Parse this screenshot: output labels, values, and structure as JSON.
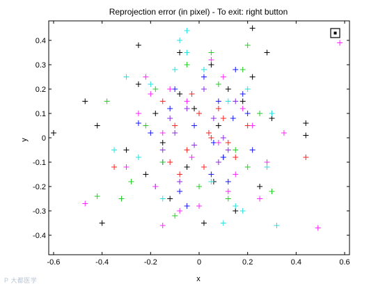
{
  "watermark": "P 大都医学",
  "marker_box_symbol": "⊡",
  "chart_data": {
    "type": "scatter",
    "title": "Reprojection error (in pixel) - To exit: right button",
    "xlabel": "x",
    "ylabel": "y",
    "xlim": [
      -0.62,
      0.62
    ],
    "ylim": [
      -0.48,
      0.48
    ],
    "xticks": [
      "-0.6",
      "-0.4",
      "-0.2",
      "0",
      "0.2",
      "0.4",
      "0.6"
    ],
    "xtick_values": [
      -0.6,
      -0.4,
      -0.2,
      0,
      0.2,
      0.4,
      0.6
    ],
    "yticks": [
      "0.4",
      "0.3",
      "0.2",
      "0.1",
      "0",
      "-0.1",
      "-0.2",
      "-0.3",
      "-0.4"
    ],
    "ytick_values": [
      0.4,
      0.3,
      0.2,
      0.1,
      0,
      -0.1,
      -0.2,
      -0.3,
      -0.4
    ],
    "marker": "+",
    "grid": false,
    "series_colors": [
      "#000000",
      "#1515ff",
      "#ff2020",
      "#22cc22",
      "#ff22ff",
      "#22e0e0",
      "#8a2be2"
    ],
    "series": [
      {
        "color": "#000000",
        "x": [
          0.12,
          -0.05,
          0.08,
          -0.18,
          0.25,
          -0.3,
          0.05,
          -0.12,
          0.18,
          -0.22,
          0.02,
          0.3,
          -0.08,
          0.15,
          -0.25,
          0.1,
          -0.15,
          0.22,
          -0.02,
          0.06,
          -0.6,
          -0.47,
          -0.42,
          -0.4,
          -0.25,
          -0.08,
          0.28,
          0.22,
          0.44,
          0.44
        ],
        "y": [
          0.2,
          -0.12,
          0.05,
          0.1,
          -0.2,
          -0.05,
          0.3,
          -0.25,
          0.15,
          -0.15,
          -0.35,
          0.08,
          0.18,
          -0.3,
          0.22,
          -0.08,
          -0.02,
          0.25,
          0.12,
          -0.18,
          0.02,
          0.15,
          0.05,
          -0.35,
          0.38,
          0.35,
          0.35,
          0.45,
          0.06,
          0.01
        ]
      },
      {
        "color": "#1515ff",
        "x": [
          -0.02,
          0.1,
          -0.12,
          0.05,
          -0.2,
          0.18,
          -0.08,
          0.14,
          -0.15,
          0.22,
          0.02,
          -0.05,
          0.08,
          -0.25,
          0.12,
          -0.1,
          0.2,
          -0.18,
          0.06,
          0.15
        ],
        "y": [
          0.05,
          -0.08,
          0.12,
          -0.15,
          0.02,
          0.18,
          -0.22,
          0.08,
          -0.1,
          -0.05,
          0.25,
          -0.28,
          0.15,
          0.06,
          -0.18,
          0.2,
          0.1,
          -0.2,
          -0.02,
          0.28
        ]
      },
      {
        "color": "#ff2020",
        "x": [
          0.0,
          0.05,
          -0.05,
          0.1,
          -0.1,
          0.02,
          -0.15,
          0.12,
          -0.03,
          0.08,
          0.15,
          -0.08,
          -0.12,
          0.04,
          0.2,
          -0.35,
          0.44
        ],
        "y": [
          0.1,
          0.0,
          -0.05,
          0.08,
          0.05,
          -0.12,
          0.15,
          -0.02,
          0.18,
          0.12,
          -0.08,
          -0.15,
          -0.1,
          0.02,
          0.05,
          -0.12,
          -0.08
        ]
      },
      {
        "color": "#22cc22",
        "x": [
          0.08,
          -0.15,
          0.2,
          -0.05,
          0.12,
          -0.22,
          0.25,
          -0.1,
          0.0,
          0.18,
          -0.28,
          0.05,
          -0.18,
          0.15,
          -0.38,
          0.3,
          -0.32,
          0.2,
          -0.42
        ],
        "y": [
          0.22,
          -0.1,
          -0.12,
          0.3,
          -0.25,
          0.05,
          0.1,
          -0.32,
          -0.2,
          0.28,
          -0.18,
          0.35,
          0.2,
          -0.05,
          0.15,
          -0.22,
          -0.25,
          0.38,
          -0.24
        ]
      },
      {
        "color": "#ff22ff",
        "x": [
          -0.05,
          0.1,
          -0.18,
          0.22,
          -0.08,
          0.15,
          -0.25,
          0.05,
          -0.12,
          0.28,
          0.0,
          -0.2,
          0.18,
          -0.03,
          0.12,
          -0.3,
          0.25,
          -0.15,
          0.08,
          -0.22,
          0.35,
          0.49,
          0.58,
          -0.47,
          -0.15
        ],
        "y": [
          0.15,
          0.25,
          -0.2,
          0.05,
          -0.3,
          -0.15,
          0.1,
          0.32,
          0.2,
          -0.1,
          -0.28,
          0.18,
          0.12,
          -0.08,
          -0.22,
          -0.12,
          -0.25,
          0.02,
          -0.02,
          0.25,
          0.02,
          -0.37,
          0.39,
          -0.27,
          -0.36
        ]
      },
      {
        "color": "#22e0e0",
        "x": [
          0.18,
          -0.1,
          0.05,
          -0.25,
          0.2,
          -0.15,
          0.12,
          0.28,
          -0.05,
          0.1,
          -0.2,
          0.3,
          -0.35,
          0.02,
          0.15,
          -0.3,
          0.32,
          -0.08,
          -0.05
        ],
        "y": [
          -0.3,
          0.28,
          -0.18,
          -0.08,
          0.2,
          -0.25,
          0.15,
          -0.12,
          0.35,
          -0.35,
          0.22,
          0.1,
          -0.05,
          0.28,
          -0.28,
          0.25,
          -0.36,
          0.4,
          0.44
        ]
      },
      {
        "color": "#8a2be2",
        "x": [
          -0.02,
          0.06,
          -0.1,
          0.12,
          -0.05,
          0.02,
          0.15,
          -0.15,
          0.08,
          -0.08,
          0.1,
          -0.12
        ],
        "y": [
          -0.03,
          0.08,
          0.02,
          -0.05,
          0.12,
          0.2,
          0.15,
          -0.05,
          -0.1,
          -0.18,
          0.0,
          0.08
        ]
      }
    ]
  }
}
